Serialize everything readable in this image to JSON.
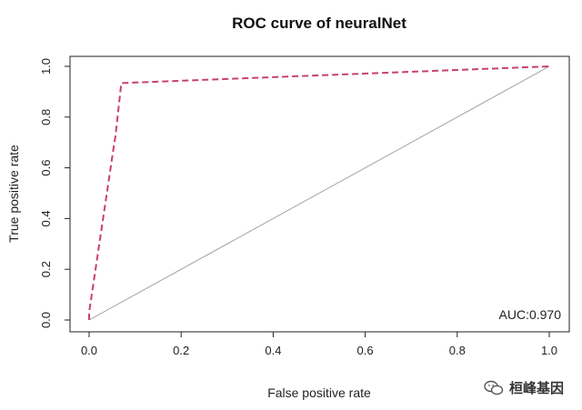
{
  "chart_data": {
    "type": "line",
    "title": "ROC curve of neuralNet",
    "xlabel": "False positive rate",
    "ylabel": "True positive rate",
    "xlim": [
      0,
      1
    ],
    "ylim": [
      0,
      1
    ],
    "x_ticks": [
      "0.0",
      "0.2",
      "0.4",
      "0.6",
      "0.8",
      "1.0"
    ],
    "y_ticks": [
      "0.0",
      "0.2",
      "0.4",
      "0.6",
      "0.8",
      "1.0"
    ],
    "series": [
      {
        "line_style": "dashed",
        "color": "#c8406a",
        "x": [
          0.0,
          0.0,
          0.055,
          0.057,
          0.07,
          1.0
        ],
        "y": [
          0.0,
          0.03,
          0.7,
          0.72,
          0.934,
          1.0
        ]
      }
    ],
    "reference_line": {
      "x": [
        0,
        1
      ],
      "y": [
        0,
        1
      ],
      "color": "#9a9a9a"
    },
    "annotations": [
      {
        "text": "AUC:0.970",
        "position": "bottom-right"
      }
    ],
    "grid": false
  },
  "watermark": {
    "text": "桓峰基因",
    "icon": "wechat-icon"
  }
}
